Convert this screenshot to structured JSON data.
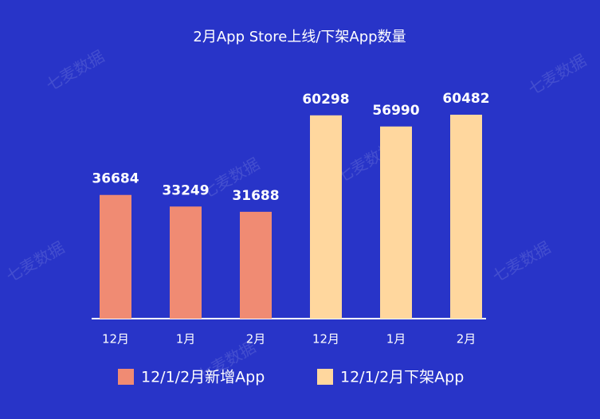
{
  "chart_data": {
    "type": "bar",
    "title": "2月App Store上线/下架App数量",
    "categories": [
      "12月",
      "1月",
      "2月",
      "12月",
      "1月",
      "2月"
    ],
    "series": [
      {
        "name": "12/1/2月新增App",
        "color": "#f08b73",
        "values": [
          36684,
          33249,
          31688,
          null,
          null,
          null
        ]
      },
      {
        "name": "12/1/2月下架App",
        "color": "#ffd79e",
        "values": [
          null,
          null,
          null,
          60298,
          56990,
          60482
        ]
      }
    ],
    "watermark": "七麦数据"
  }
}
